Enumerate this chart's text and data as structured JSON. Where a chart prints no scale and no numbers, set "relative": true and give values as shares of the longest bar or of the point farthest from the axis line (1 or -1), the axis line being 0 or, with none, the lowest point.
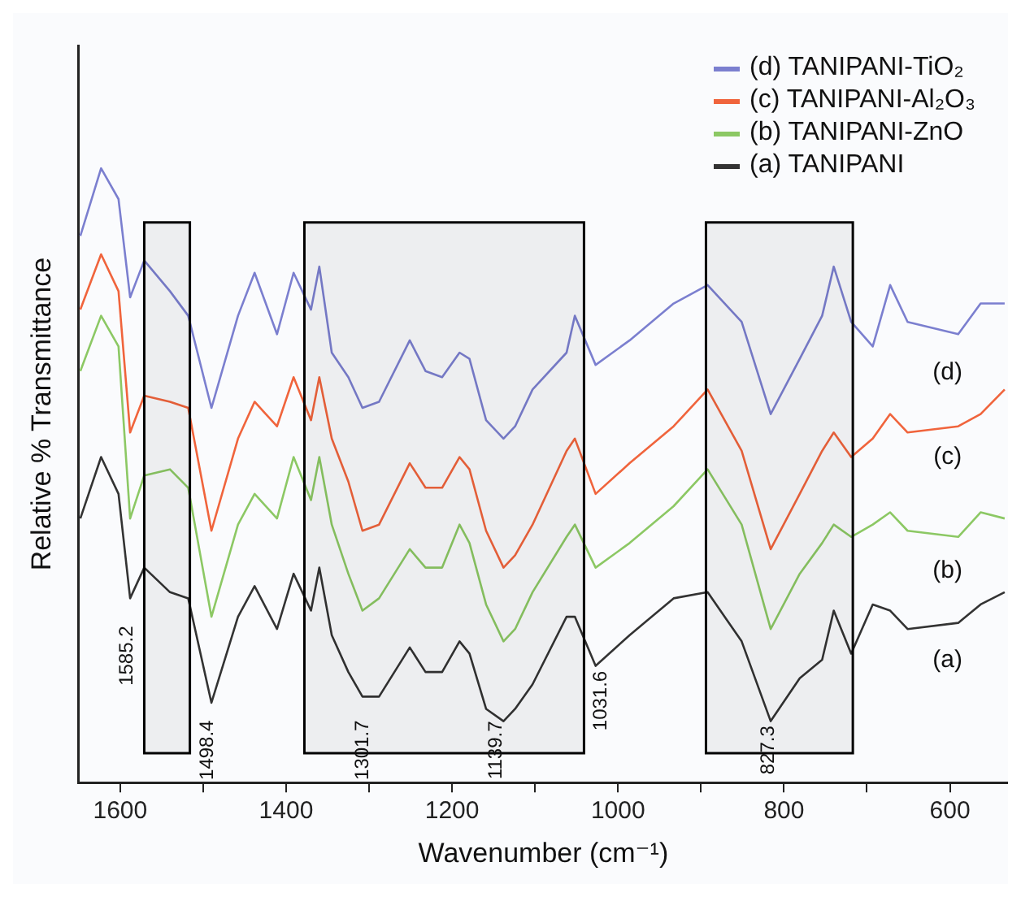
{
  "chart_data": {
    "type": "line",
    "relative": true,
    "xlabel": "Wavenumber (cm⁻¹)",
    "ylabel": "Relative % Transmittance",
    "xlim": [
      1650,
      530
    ],
    "xticks": [
      1600,
      {
        "value": 1500,
        "label": null
      },
      1400,
      {
        "value": 1300,
        "label": null
      },
      1200,
      {
        "value": 1100,
        "label": null
      },
      1000,
      {
        "value": 900,
        "label": null
      },
      800,
      {
        "value": 700,
        "label": null
      },
      600
    ],
    "x": [
      1648,
      1623,
      1602,
      1588,
      1571,
      1540,
      1518,
      1490,
      1458,
      1438,
      1411,
      1391,
      1370,
      1360,
      1345,
      1325,
      1308,
      1288,
      1251,
      1232,
      1212,
      1191,
      1179,
      1159,
      1138,
      1124,
      1103,
      1062,
      1052,
      1027,
      986,
      933,
      892,
      851,
      816,
      781,
      754,
      740,
      719,
      693,
      672,
      651,
      590,
      563,
      534
    ],
    "series": [
      {
        "name": "(d) TANIPANI-TiO₂",
        "color": "#7b7fcf",
        "values": [
          0.89,
          1.0,
          0.95,
          0.79,
          0.85,
          0.8,
          0.76,
          0.61,
          0.76,
          0.83,
          0.73,
          0.83,
          0.77,
          0.84,
          0.7,
          0.66,
          0.61,
          0.62,
          0.72,
          0.67,
          0.66,
          0.7,
          0.69,
          0.59,
          0.56,
          0.58,
          0.64,
          0.7,
          0.76,
          0.68,
          0.72,
          0.78,
          0.81,
          0.75,
          0.6,
          0.69,
          0.76,
          0.84,
          0.75,
          0.71,
          0.81,
          0.75,
          0.73,
          0.78,
          0.78
        ]
      },
      {
        "name": "(c) TANIPANI-Al₂O₃",
        "color": "#f0643c",
        "values": [
          0.77,
          0.86,
          0.8,
          0.57,
          0.63,
          0.62,
          0.61,
          0.41,
          0.56,
          0.62,
          0.58,
          0.66,
          0.59,
          0.66,
          0.56,
          0.49,
          0.41,
          0.42,
          0.52,
          0.48,
          0.48,
          0.53,
          0.51,
          0.41,
          0.35,
          0.37,
          0.42,
          0.54,
          0.56,
          0.47,
          0.52,
          0.58,
          0.64,
          0.54,
          0.38,
          0.47,
          0.54,
          0.57,
          0.53,
          0.56,
          0.6,
          0.57,
          0.58,
          0.6,
          0.64
        ]
      },
      {
        "name": "(b) TANIPANI-ZnO",
        "color": "#8cc864",
        "values": [
          0.67,
          0.76,
          0.71,
          0.43,
          0.5,
          0.51,
          0.48,
          0.27,
          0.42,
          0.47,
          0.43,
          0.53,
          0.46,
          0.53,
          0.42,
          0.34,
          0.28,
          0.3,
          0.38,
          0.35,
          0.35,
          0.42,
          0.39,
          0.29,
          0.23,
          0.25,
          0.31,
          0.4,
          0.42,
          0.35,
          0.39,
          0.45,
          0.51,
          0.42,
          0.25,
          0.34,
          0.39,
          0.42,
          0.4,
          0.42,
          0.44,
          0.41,
          0.4,
          0.44,
          0.43
        ]
      },
      {
        "name": "(a) TANIPANI",
        "color": "#333333",
        "values": [
          0.43,
          0.53,
          0.47,
          0.3,
          0.35,
          0.31,
          0.3,
          0.13,
          0.27,
          0.32,
          0.25,
          0.34,
          0.28,
          0.35,
          0.24,
          0.18,
          0.14,
          0.14,
          0.22,
          0.18,
          0.18,
          0.23,
          0.21,
          0.12,
          0.1,
          0.12,
          0.16,
          0.27,
          0.27,
          0.19,
          0.24,
          0.3,
          0.31,
          0.23,
          0.1,
          0.17,
          0.2,
          0.28,
          0.21,
          0.29,
          0.28,
          0.25,
          0.26,
          0.29,
          0.31
        ]
      }
    ],
    "bands": [
      {
        "axis": "x",
        "from": 1571,
        "to": 1516,
        "color": "#000000"
      },
      {
        "axis": "x",
        "from": 1378,
        "to": 1041,
        "color": "#000000"
      },
      {
        "axis": "x",
        "from": 894,
        "to": 717,
        "color": "#000000"
      }
    ],
    "annotations": [
      "(d)",
      "(c)",
      "(b)",
      "(a)",
      "1585.2",
      "1498.4",
      "1301.7",
      "1139.7",
      "1031.6",
      "827.3"
    ],
    "legend": "top right",
    "grid": false,
    "marker": "none",
    "line_style": "solid"
  }
}
